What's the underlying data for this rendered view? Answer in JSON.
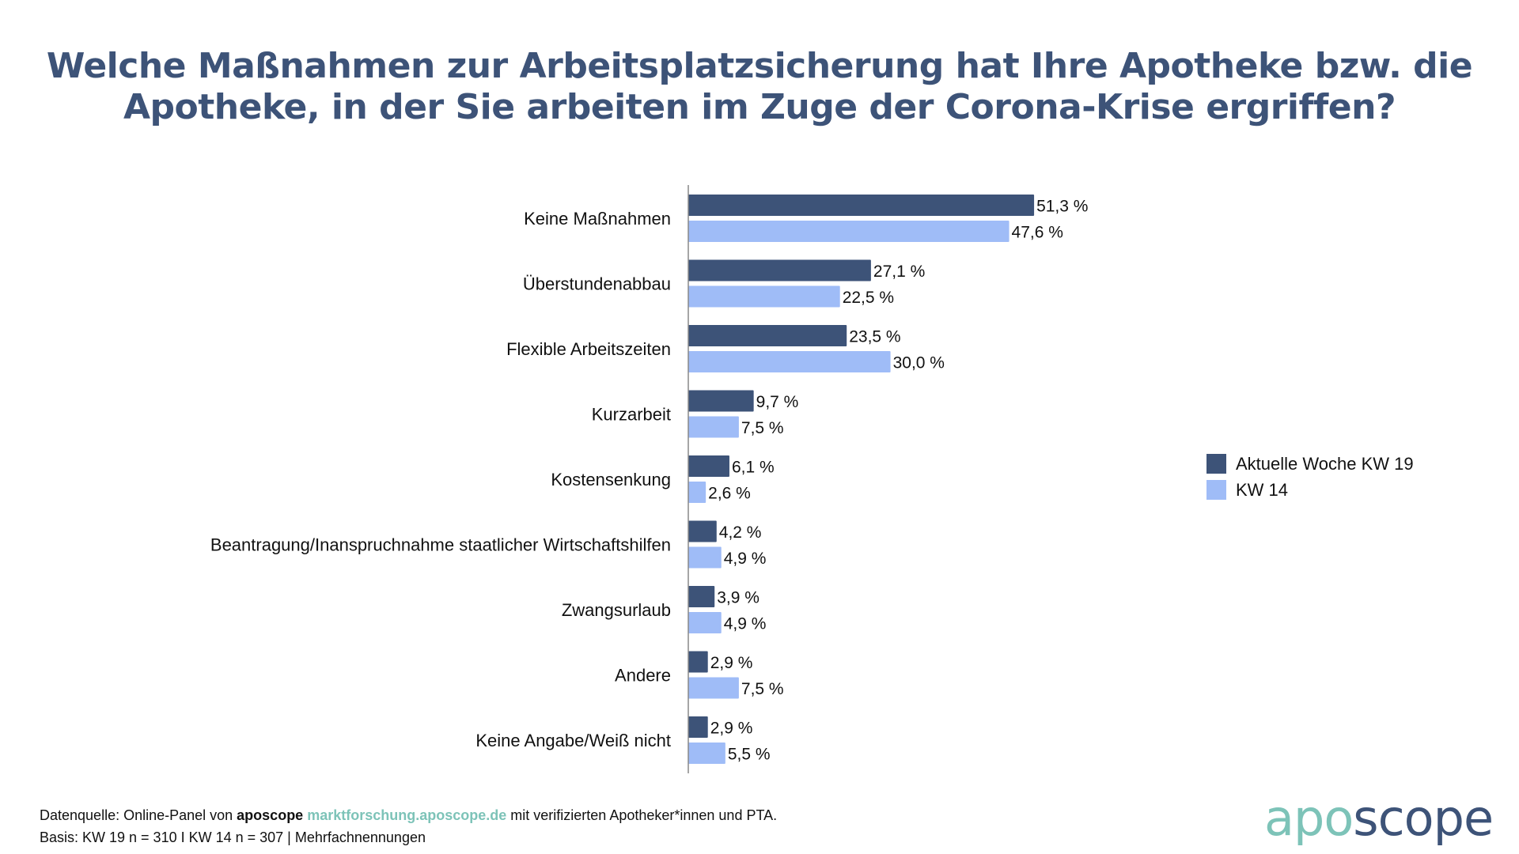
{
  "title_lines": [
    "Welche Maßnahmen zur Arbeitsplatzsicherung hat Ihre Apotheke bzw. die",
    "Apotheke, in der Sie arbeiten im Zuge der Corona-Krise ergriffen?"
  ],
  "colors": {
    "current": "#3d5378",
    "previous": "#9fbcf7",
    "title": "#3d5378",
    "accent": "#7dc3b8"
  },
  "chart_data": {
    "type": "bar",
    "orientation": "horizontal",
    "title": "Welche Maßnahmen zur Arbeitsplatzsicherung hat Ihre Apotheke bzw. die Apotheke, in der Sie arbeiten im Zuge der Corona-Krise ergriffen?",
    "xlabel": "",
    "ylabel": "",
    "unit": "%",
    "xlim": [
      0,
      55
    ],
    "grid": false,
    "legend_position": "right",
    "categories": [
      "Keine Maßnahmen",
      "Überstundenabbau",
      "Flexible Arbeitszeiten",
      "Kurzarbeit",
      "Kostensenkung",
      "Beantragung/Inanspruchnahme staatlicher Wirtschaftshilfen",
      "Zwangsurlaub",
      "Andere",
      "Keine Angabe/Weiß nicht"
    ],
    "series": [
      {
        "name": "Aktuelle Woche KW 19",
        "values": [
          51.3,
          27.1,
          23.5,
          9.7,
          6.1,
          4.2,
          3.9,
          2.9,
          2.9
        ],
        "labels": [
          "51,3 %",
          "27,1 %",
          "23,5 %",
          "9,7 %",
          "6,1 %",
          "4,2 %",
          "3,9 %",
          "2,9 %",
          "2,9 %"
        ]
      },
      {
        "name": "KW 14",
        "values": [
          47.6,
          22.5,
          30.0,
          7.5,
          2.6,
          4.9,
          4.9,
          7.5,
          5.5
        ],
        "labels": [
          "47,6 %",
          "22,5 %",
          "30,0 %",
          "7,5 %",
          "2,6 %",
          "4,9 %",
          "4,9 %",
          "7,5 %",
          "5,5 %"
        ]
      }
    ]
  },
  "legend": [
    {
      "label": "Aktuelle Woche KW 19"
    },
    {
      "label": "KW 14"
    }
  ],
  "footer": {
    "line1_prefix": "Datenquelle: Online-Panel von ",
    "brand": "aposcope",
    "link": "marktforschung.aposcope.de",
    "line1_suffix": " mit verifizierten Apotheker*innen und PTA.",
    "line2": "Basis: KW 19 n = 310 I KW 14 n = 307 | Mehrfachnennungen"
  },
  "logo": {
    "part1": "apo",
    "part2": "scope"
  }
}
